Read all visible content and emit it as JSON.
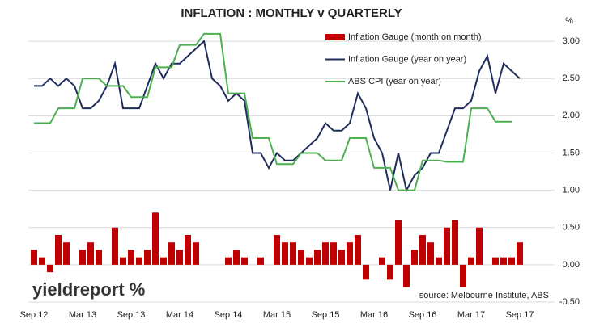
{
  "chart_data": {
    "type": "combo",
    "title": "INFLATION : MONTHLY v QUARTERLY",
    "y_label": "%",
    "source": "source: Melbourne Institute, ABS",
    "logo": "yieldreport %",
    "categories": [
      "Sep 12",
      null,
      null,
      null,
      null,
      null,
      "Mar 13",
      null,
      null,
      null,
      null,
      null,
      "Sep 13",
      null,
      null,
      null,
      null,
      null,
      "Mar 14",
      null,
      null,
      null,
      null,
      null,
      "Sep 14",
      null,
      null,
      null,
      null,
      null,
      "Mar 15",
      null,
      null,
      null,
      null,
      null,
      "Sep 15",
      null,
      null,
      null,
      null,
      null,
      "Mar 16",
      null,
      null,
      null,
      null,
      null,
      "Sep 16",
      null,
      null,
      null,
      null,
      null,
      "Mar 17",
      null,
      null,
      null,
      null,
      null,
      "Sep 17"
    ],
    "series": [
      {
        "name": "Inflation Gauge (month on month)",
        "kind": "bar",
        "color": "#c00000",
        "values": [
          0.2,
          0.1,
          -0.1,
          0.4,
          0.3,
          0,
          0.2,
          0.3,
          0.2,
          0,
          0.5,
          0.1,
          0.2,
          0.1,
          0.2,
          0.7,
          0.1,
          0.3,
          0.2,
          0.4,
          0.3,
          0,
          0,
          0,
          0.1,
          0.2,
          0.1,
          0,
          0.1,
          0,
          0.4,
          0.3,
          0.3,
          0.2,
          0.1,
          0.2,
          0.3,
          0.3,
          0.2,
          0.3,
          0.4,
          -0.2,
          0,
          0.1,
          -0.2,
          0.6,
          -0.3,
          0.2,
          0.4,
          0.3,
          0.1,
          0.5,
          0.6,
          -0.3,
          0.1,
          0.5,
          0,
          0.1,
          0.1,
          0.1,
          0.3
        ]
      },
      {
        "name": "Inflation Gauge (year on year)",
        "kind": "line",
        "color": "#1f2d5c",
        "values": [
          2.4,
          2.4,
          2.5,
          2.4,
          2.5,
          2.4,
          2.1,
          2.1,
          2.2,
          2.4,
          2.7,
          2.1,
          2.1,
          2.1,
          2.4,
          2.7,
          2.5,
          2.7,
          2.7,
          2.8,
          2.9,
          3.0,
          2.5,
          2.4,
          2.2,
          2.3,
          2.2,
          1.5,
          1.5,
          1.3,
          1.5,
          1.4,
          1.4,
          1.5,
          1.6,
          1.7,
          1.9,
          1.8,
          1.8,
          1.9,
          2.3,
          2.1,
          1.7,
          1.5,
          1.0,
          1.5,
          1.0,
          1.2,
          1.3,
          1.5,
          1.5,
          1.8,
          2.1,
          2.1,
          2.2,
          2.6,
          2.8,
          2.3,
          2.7,
          2.6,
          2.5
        ]
      },
      {
        "name": "ABS CPI (year on year)",
        "kind": "line",
        "color": "#4caf50",
        "values": [
          1.9,
          1.9,
          1.9,
          2.1,
          2.1,
          2.1,
          2.5,
          2.5,
          2.5,
          2.4,
          2.4,
          2.4,
          2.25,
          2.25,
          2.25,
          2.65,
          2.65,
          2.65,
          2.95,
          2.95,
          2.95,
          3.1,
          3.1,
          3.1,
          2.3,
          2.3,
          2.3,
          1.7,
          1.7,
          1.7,
          1.35,
          1.35,
          1.35,
          1.5,
          1.5,
          1.5,
          1.4,
          1.4,
          1.4,
          1.7,
          1.7,
          1.7,
          1.3,
          1.3,
          1.3,
          1.0,
          1.0,
          1.0,
          1.4,
          1.4,
          1.4,
          1.38,
          1.38,
          1.38,
          2.1,
          2.1,
          2.1,
          1.92,
          1.92,
          1.92,
          null
        ]
      }
    ],
    "ylim": [
      -0.5,
      3.25
    ],
    "yticks": [
      {
        "value": -0.5,
        "label": "-0.50"
      },
      {
        "value": 0,
        "label": "0.00"
      },
      {
        "value": 0.5,
        "label": "0.50"
      },
      {
        "value": 1,
        "label": "1.00"
      },
      {
        "value": 1.5,
        "label": "1.50"
      },
      {
        "value": 2,
        "label": "2.00"
      },
      {
        "value": 2.5,
        "label": "2.50"
      },
      {
        "value": 3,
        "label": "3.00"
      }
    ],
    "grid": true
  }
}
